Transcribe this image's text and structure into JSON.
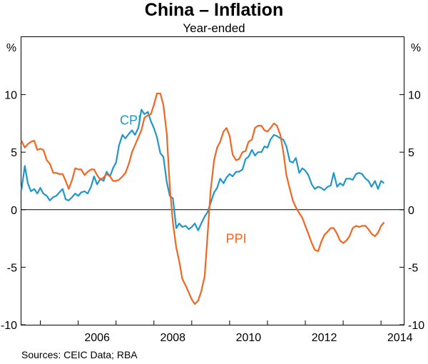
{
  "title": "China – Inflation",
  "subtitle": "Year-ended",
  "source": "Sources:   CEIC Data; RBA",
  "chart_data": {
    "type": "line",
    "title": "China – Inflation",
    "subtitle": "Year-ended",
    "y_unit_left": "%",
    "y_unit_right": "%",
    "xlim": [
      2004.5,
      2014.6
    ],
    "ylim": [
      -10,
      15
    ],
    "y_ticks": [
      10,
      5,
      0,
      -5,
      -10
    ],
    "y_tick_labels": [
      "10",
      "5",
      "0",
      "-5",
      "-10"
    ],
    "x_ticks": [
      2006,
      2008,
      2010,
      2012,
      2014
    ],
    "x_tick_labels": [
      "2006",
      "2008",
      "2010",
      "2012",
      "2014"
    ],
    "grid": false,
    "zero_line": true,
    "series": [
      {
        "name": "CPI",
        "color": "#1f97c9",
        "points": [
          [
            2004.5,
            1.7
          ],
          [
            2004.59,
            3.8
          ],
          [
            2004.67,
            2.3
          ],
          [
            2004.75,
            1.6
          ],
          [
            2004.84,
            1.8
          ],
          [
            2004.92,
            1.4
          ],
          [
            2005.0,
            1.9
          ],
          [
            2005.08,
            1.4
          ],
          [
            2005.17,
            1.2
          ],
          [
            2005.25,
            0.8
          ],
          [
            2005.34,
            1.1
          ],
          [
            2005.42,
            1.2
          ],
          [
            2005.5,
            1.5
          ],
          [
            2005.59,
            1.8
          ],
          [
            2005.67,
            0.9
          ],
          [
            2005.75,
            0.8
          ],
          [
            2005.84,
            1.1
          ],
          [
            2005.92,
            1.4
          ],
          [
            2006.0,
            1.2
          ],
          [
            2006.08,
            1.5
          ],
          [
            2006.17,
            1.6
          ],
          [
            2006.25,
            1.4
          ],
          [
            2006.34,
            2.0
          ],
          [
            2006.42,
            2.9
          ],
          [
            2006.5,
            2.2
          ],
          [
            2006.59,
            2.7
          ],
          [
            2006.67,
            2.5
          ],
          [
            2006.75,
            3.3
          ],
          [
            2006.84,
            2.9
          ],
          [
            2006.92,
            3.6
          ],
          [
            2007.0,
            4.1
          ],
          [
            2007.08,
            5.6
          ],
          [
            2007.17,
            6.5
          ],
          [
            2007.25,
            6.2
          ],
          [
            2007.34,
            6.6
          ],
          [
            2007.42,
            6.9
          ],
          [
            2007.5,
            6.5
          ],
          [
            2007.59,
            7.1
          ],
          [
            2007.67,
            8.7
          ],
          [
            2007.75,
            8.3
          ],
          [
            2007.84,
            8.5
          ],
          [
            2007.92,
            7.7
          ],
          [
            2008.0,
            7.1
          ],
          [
            2008.08,
            6.3
          ],
          [
            2008.17,
            4.9
          ],
          [
            2008.25,
            4.6
          ],
          [
            2008.34,
            2.4
          ],
          [
            2008.42,
            1.2
          ],
          [
            2008.5,
            1.0
          ],
          [
            2008.59,
            -1.6
          ],
          [
            2008.67,
            -1.2
          ],
          [
            2008.75,
            -1.5
          ],
          [
            2008.84,
            -1.4
          ],
          [
            2008.92,
            -1.7
          ],
          [
            2009.0,
            -1.5
          ],
          [
            2009.08,
            -1.2
          ],
          [
            2009.17,
            -1.8
          ],
          [
            2009.25,
            -1.2
          ],
          [
            2009.34,
            -0.6
          ],
          [
            2009.42,
            -0.2
          ],
          [
            2009.5,
            0.6
          ],
          [
            2009.59,
            1.5
          ],
          [
            2009.67,
            1.9
          ],
          [
            2009.75,
            2.7
          ],
          [
            2009.84,
            2.3
          ],
          [
            2009.92,
            2.8
          ],
          [
            2010.0,
            3.1
          ],
          [
            2010.08,
            2.9
          ],
          [
            2010.17,
            3.3
          ],
          [
            2010.25,
            3.3
          ],
          [
            2010.34,
            3.5
          ],
          [
            2010.42,
            4.4
          ],
          [
            2010.5,
            4.6
          ],
          [
            2010.59,
            5.2
          ],
          [
            2010.67,
            4.7
          ],
          [
            2010.75,
            5.0
          ],
          [
            2010.84,
            5.0
          ],
          [
            2010.92,
            5.5
          ],
          [
            2011.0,
            5.4
          ],
          [
            2011.08,
            6.1
          ],
          [
            2011.17,
            6.5
          ],
          [
            2011.25,
            6.4
          ],
          [
            2011.34,
            6.2
          ],
          [
            2011.42,
            6.1
          ],
          [
            2011.5,
            5.5
          ],
          [
            2011.59,
            4.2
          ],
          [
            2011.67,
            4.1
          ],
          [
            2011.75,
            4.5
          ],
          [
            2011.84,
            3.2
          ],
          [
            2011.92,
            3.6
          ],
          [
            2012.0,
            3.4
          ],
          [
            2012.08,
            3.0
          ],
          [
            2012.17,
            2.2
          ],
          [
            2012.25,
            1.8
          ],
          [
            2012.34,
            2.0
          ],
          [
            2012.42,
            1.9
          ],
          [
            2012.5,
            1.7
          ],
          [
            2012.59,
            2.0
          ],
          [
            2012.67,
            2.1
          ],
          [
            2012.75,
            3.2
          ],
          [
            2012.84,
            2.0
          ],
          [
            2012.92,
            2.3
          ],
          [
            2013.0,
            2.1
          ],
          [
            2013.08,
            2.7
          ],
          [
            2013.17,
            2.7
          ],
          [
            2013.25,
            2.6
          ],
          [
            2013.34,
            3.1
          ],
          [
            2013.42,
            3.2
          ],
          [
            2013.5,
            3.1
          ],
          [
            2013.59,
            2.7
          ],
          [
            2013.67,
            2.5
          ],
          [
            2013.75,
            2.0
          ],
          [
            2013.84,
            2.5
          ],
          [
            2013.92,
            1.8
          ],
          [
            2014.0,
            2.5
          ],
          [
            2014.08,
            2.3
          ]
        ]
      },
      {
        "name": "PPI",
        "color": "#f26522",
        "points": [
          [
            2004.5,
            6.0
          ],
          [
            2004.59,
            5.4
          ],
          [
            2004.67,
            5.7
          ],
          [
            2004.75,
            5.9
          ],
          [
            2004.84,
            6.0
          ],
          [
            2004.92,
            5.2
          ],
          [
            2005.0,
            5.3
          ],
          [
            2005.08,
            5.2
          ],
          [
            2005.17,
            4.3
          ],
          [
            2005.25,
            4.0
          ],
          [
            2005.34,
            3.2
          ],
          [
            2005.42,
            3.2
          ],
          [
            2005.5,
            3.1
          ],
          [
            2005.59,
            3.1
          ],
          [
            2005.67,
            2.5
          ],
          [
            2005.75,
            1.8
          ],
          [
            2005.84,
            2.6
          ],
          [
            2005.92,
            3.6
          ],
          [
            2006.0,
            3.5
          ],
          [
            2006.08,
            3.5
          ],
          [
            2006.17,
            3.0
          ],
          [
            2006.25,
            3.3
          ],
          [
            2006.34,
            3.5
          ],
          [
            2006.42,
            3.5
          ],
          [
            2006.5,
            3.0
          ],
          [
            2006.59,
            2.6
          ],
          [
            2006.67,
            2.8
          ],
          [
            2006.75,
            3.1
          ],
          [
            2006.84,
            2.9
          ],
          [
            2006.92,
            2.5
          ],
          [
            2007.0,
            2.5
          ],
          [
            2007.08,
            2.6
          ],
          [
            2007.17,
            2.9
          ],
          [
            2007.25,
            3.2
          ],
          [
            2007.34,
            4.0
          ],
          [
            2007.42,
            5.0
          ],
          [
            2007.5,
            5.6
          ],
          [
            2007.59,
            6.3
          ],
          [
            2007.67,
            6.9
          ],
          [
            2007.75,
            8.0
          ],
          [
            2007.84,
            8.2
          ],
          [
            2007.92,
            8.3
          ],
          [
            2008.0,
            9.1
          ],
          [
            2008.08,
            10.1
          ],
          [
            2008.17,
            10.1
          ],
          [
            2008.25,
            9.1
          ],
          [
            2008.34,
            6.6
          ],
          [
            2008.42,
            2.0
          ],
          [
            2008.5,
            -1.1
          ],
          [
            2008.59,
            -3.3
          ],
          [
            2008.67,
            -4.5
          ],
          [
            2008.75,
            -6.0
          ],
          [
            2008.84,
            -6.6
          ],
          [
            2008.92,
            -7.2
          ],
          [
            2009.0,
            -7.8
          ],
          [
            2009.08,
            -8.2
          ],
          [
            2009.17,
            -7.9
          ],
          [
            2009.25,
            -7.1
          ],
          [
            2009.34,
            -5.8
          ],
          [
            2009.42,
            -2.1
          ],
          [
            2009.5,
            1.7
          ],
          [
            2009.59,
            4.3
          ],
          [
            2009.67,
            5.4
          ],
          [
            2009.75,
            5.9
          ],
          [
            2009.84,
            6.8
          ],
          [
            2009.92,
            7.1
          ],
          [
            2010.0,
            6.4
          ],
          [
            2010.08,
            4.8
          ],
          [
            2010.17,
            4.3
          ],
          [
            2010.25,
            4.4
          ],
          [
            2010.34,
            5.0
          ],
          [
            2010.42,
            5.1
          ],
          [
            2010.5,
            5.9
          ],
          [
            2010.59,
            6.1
          ],
          [
            2010.67,
            7.1
          ],
          [
            2010.75,
            7.3
          ],
          [
            2010.84,
            7.3
          ],
          [
            2010.92,
            6.9
          ],
          [
            2011.0,
            6.8
          ],
          [
            2011.08,
            7.1
          ],
          [
            2011.17,
            7.5
          ],
          [
            2011.25,
            7.3
          ],
          [
            2011.34,
            6.5
          ],
          [
            2011.42,
            5.0
          ],
          [
            2011.5,
            3.0
          ],
          [
            2011.59,
            1.8
          ],
          [
            2011.67,
            0.8
          ],
          [
            2011.75,
            0.2
          ],
          [
            2011.84,
            -0.3
          ],
          [
            2011.92,
            -0.7
          ],
          [
            2012.0,
            -1.4
          ],
          [
            2012.08,
            -2.1
          ],
          [
            2012.17,
            -2.9
          ],
          [
            2012.25,
            -3.5
          ],
          [
            2012.34,
            -3.6
          ],
          [
            2012.42,
            -2.8
          ],
          [
            2012.5,
            -2.2
          ],
          [
            2012.59,
            -1.9
          ],
          [
            2012.67,
            -1.6
          ],
          [
            2012.75,
            -1.6
          ],
          [
            2012.84,
            -2.1
          ],
          [
            2012.92,
            -2.7
          ],
          [
            2013.0,
            -2.9
          ],
          [
            2013.08,
            -2.7
          ],
          [
            2013.17,
            -2.3
          ],
          [
            2013.25,
            -1.6
          ],
          [
            2013.34,
            -1.4
          ],
          [
            2013.42,
            -1.5
          ],
          [
            2013.5,
            -1.4
          ],
          [
            2013.59,
            -1.4
          ],
          [
            2013.67,
            -1.7
          ],
          [
            2013.75,
            -2.1
          ],
          [
            2013.84,
            -2.3
          ],
          [
            2013.92,
            -2.0
          ],
          [
            2014.0,
            -1.4
          ],
          [
            2014.08,
            -1.1
          ]
        ]
      }
    ],
    "annotations": [
      {
        "text": "CPI",
        "color": "#1f97c9",
        "x": 2007.1,
        "y": 7.4
      },
      {
        "text": "PPI",
        "color": "#f26522",
        "x": 2009.9,
        "y": -2.9
      }
    ]
  }
}
